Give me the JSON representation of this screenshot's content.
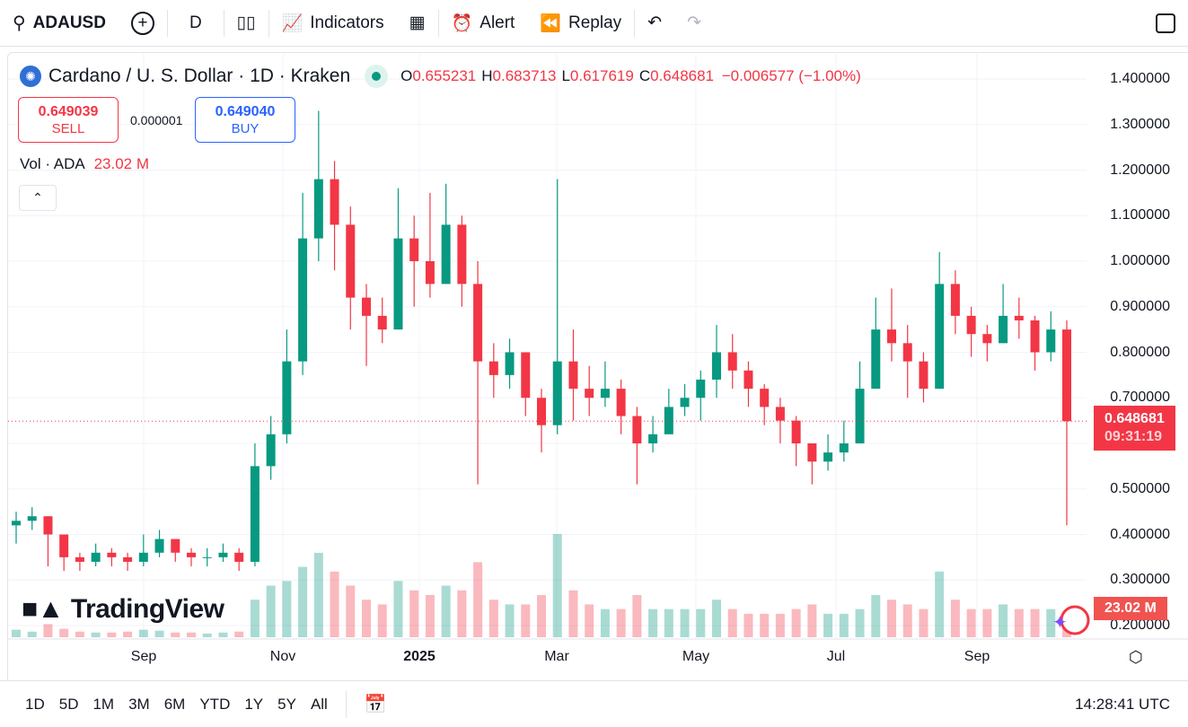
{
  "toolbar": {
    "symbol": "ADAUSD",
    "interval": "D",
    "indicators": "Indicators",
    "alert": "Alert",
    "replay": "Replay"
  },
  "legend": {
    "title": "Cardano / U. S. Dollar · 1D · Kraken",
    "o_label": "O",
    "o": "0.655231",
    "h_label": "H",
    "h": "0.683713",
    "l_label": "L",
    "l": "0.617619",
    "c_label": "C",
    "c": "0.648681",
    "change": "−0.006577 (−1.00%)"
  },
  "trade": {
    "sell_price": "0.649039",
    "sell_label": "SELL",
    "spread": "0.000001",
    "buy_price": "0.649040",
    "buy_label": "BUY"
  },
  "volume": {
    "label": "Vol · ADA",
    "value": "23.02 M"
  },
  "price_axis": [
    "1.400000",
    "1.300000",
    "1.200000",
    "1.100000",
    "1.000000",
    "0.900000",
    "0.800000",
    "0.700000",
    "0.500000",
    "0.400000",
    "0.300000",
    "0.200000"
  ],
  "last_price": {
    "price": "0.648681",
    "countdown": "09:31:19",
    "volume": "23.02 M"
  },
  "time_axis": [
    "Sep",
    "Nov",
    "2025",
    "Mar",
    "May",
    "Jul",
    "Sep"
  ],
  "watermark": "TradingView",
  "bottom": {
    "ranges": [
      "1D",
      "5D",
      "1M",
      "3M",
      "6M",
      "YTD",
      "1Y",
      "5Y",
      "All"
    ],
    "clock": "14:28:41 UTC"
  },
  "colors": {
    "up": "#089981",
    "down": "#f23645",
    "buy": "#2962ff"
  },
  "chart_data": {
    "type": "candlestick",
    "title": "Cardano / U. S. Dollar · 1D · Kraken",
    "note": "weekly approximation of daily candles, open = previous close",
    "start": "2024-07-21",
    "step_days": 7,
    "ylim": [
      0.2,
      1.4
    ],
    "close": [
      0.43,
      0.44,
      0.4,
      0.35,
      0.34,
      0.36,
      0.35,
      0.34,
      0.36,
      0.39,
      0.36,
      0.35,
      0.35,
      0.36,
      0.34,
      0.55,
      0.62,
      0.78,
      1.05,
      1.18,
      1.08,
      0.92,
      0.88,
      0.85,
      1.05,
      1.0,
      0.95,
      1.08,
      0.95,
      0.78,
      0.75,
      0.8,
      0.7,
      0.64,
      0.78,
      0.72,
      0.7,
      0.72,
      0.66,
      0.6,
      0.62,
      0.68,
      0.7,
      0.74,
      0.8,
      0.76,
      0.72,
      0.68,
      0.65,
      0.6,
      0.56,
      0.58,
      0.6,
      0.72,
      0.85,
      0.82,
      0.78,
      0.72,
      0.95,
      0.88,
      0.84,
      0.82,
      0.88,
      0.87,
      0.8,
      0.85,
      0.6487
    ],
    "high": [
      0.45,
      0.46,
      0.44,
      0.37,
      0.36,
      0.38,
      0.37,
      0.36,
      0.4,
      0.41,
      0.39,
      0.37,
      0.37,
      0.38,
      0.37,
      0.6,
      0.66,
      0.85,
      1.15,
      1.33,
      1.22,
      1.12,
      0.95,
      0.92,
      1.16,
      1.1,
      1.15,
      1.17,
      1.1,
      1.0,
      0.82,
      0.83,
      0.8,
      0.72,
      1.18,
      0.85,
      0.77,
      0.78,
      0.74,
      0.68,
      0.66,
      0.72,
      0.73,
      0.76,
      0.86,
      0.84,
      0.78,
      0.73,
      0.7,
      0.66,
      0.6,
      0.62,
      0.65,
      0.78,
      0.92,
      0.94,
      0.86,
      0.8,
      1.02,
      0.98,
      0.9,
      0.86,
      0.95,
      0.92,
      0.88,
      0.89,
      0.87
    ],
    "low": [
      0.38,
      0.41,
      0.33,
      0.32,
      0.32,
      0.33,
      0.33,
      0.32,
      0.33,
      0.35,
      0.34,
      0.33,
      0.33,
      0.34,
      0.32,
      0.33,
      0.52,
      0.6,
      0.75,
      1.0,
      0.98,
      0.85,
      0.77,
      0.82,
      0.85,
      0.9,
      0.92,
      0.95,
      0.9,
      0.51,
      0.7,
      0.72,
      0.66,
      0.58,
      0.62,
      0.65,
      0.66,
      0.68,
      0.62,
      0.51,
      0.58,
      0.62,
      0.66,
      0.65,
      0.7,
      0.72,
      0.68,
      0.64,
      0.6,
      0.55,
      0.51,
      0.54,
      0.56,
      0.62,
      0.75,
      0.78,
      0.7,
      0.69,
      0.72,
      0.84,
      0.79,
      0.78,
      0.82,
      0.83,
      0.76,
      0.78,
      0.42
    ],
    "volume_m": [
      8,
      6,
      14,
      9,
      6,
      5,
      5,
      6,
      8,
      7,
      5,
      5,
      4,
      5,
      6,
      40,
      55,
      60,
      75,
      90,
      70,
      55,
      40,
      35,
      60,
      50,
      45,
      55,
      50,
      80,
      40,
      35,
      35,
      45,
      110,
      50,
      35,
      30,
      30,
      45,
      30,
      30,
      30,
      30,
      40,
      30,
      25,
      25,
      25,
      30,
      35,
      25,
      25,
      30,
      45,
      40,
      35,
      30,
      70,
      40,
      30,
      30,
      35,
      30,
      30,
      30,
      23
    ]
  }
}
